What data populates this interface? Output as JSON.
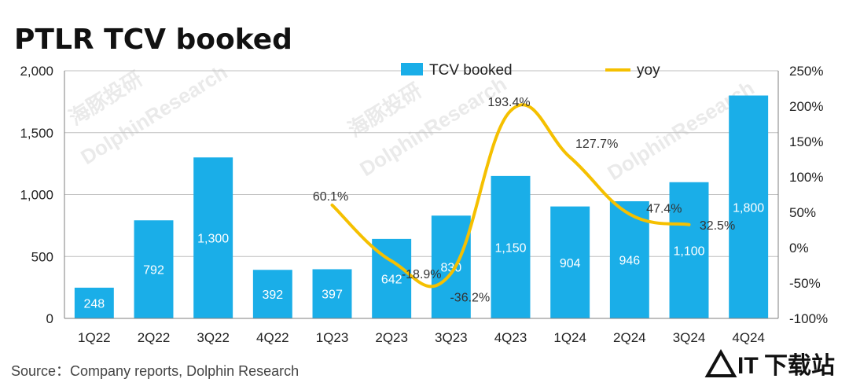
{
  "title": "PTLR TCV booked",
  "source": "Source：Company reports, Dolphin Research",
  "watermark": "DolphinResearch",
  "watermark_cn": "海豚投研",
  "logo": {
    "mark": "IT",
    "text": "下载站"
  },
  "colors": {
    "bar": "#1aaee8",
    "line": "#f5c000",
    "grid": "#bfbfbf"
  },
  "chart_data": {
    "type": "bar",
    "categories": [
      "1Q22",
      "2Q22",
      "3Q22",
      "4Q22",
      "1Q23",
      "2Q23",
      "3Q23",
      "4Q23",
      "1Q24",
      "2Q24",
      "3Q24",
      "4Q24"
    ],
    "left_ticks": [
      "0",
      "500",
      "1,000",
      "1,500",
      "2,000"
    ],
    "right_ticks": [
      "-100%",
      "-50%",
      "0%",
      "50%",
      "100%",
      "150%",
      "200%",
      "250%"
    ],
    "ylim": [
      0,
      2000
    ],
    "y2lim": [
      -100,
      250
    ],
    "legend": {
      "position": "top-center",
      "bar": "TCV booked",
      "line": "yoy"
    },
    "series": [
      {
        "name": "TCV booked",
        "type": "bar",
        "values": [
          248,
          792,
          1300,
          392,
          397,
          642,
          830,
          1150,
          904,
          946,
          1100,
          1800
        ],
        "labels": [
          "248",
          "792",
          "1,300",
          "392",
          "397",
          "642",
          "830",
          "1,150",
          "904",
          "946",
          "1,100",
          "1,800"
        ]
      },
      {
        "name": "yoy",
        "type": "line",
        "axis": "right",
        "values": [
          null,
          null,
          null,
          null,
          60.1,
          -18.9,
          -36.2,
          193.4,
          127.7,
          47.4,
          32.5,
          null
        ],
        "labels": [
          "",
          "",
          "",
          "",
          "60.1%",
          "-18.9%",
          "-36.2%",
          "193.4%",
          "127.7%",
          "47.4%",
          "32.5%",
          ""
        ]
      }
    ]
  }
}
